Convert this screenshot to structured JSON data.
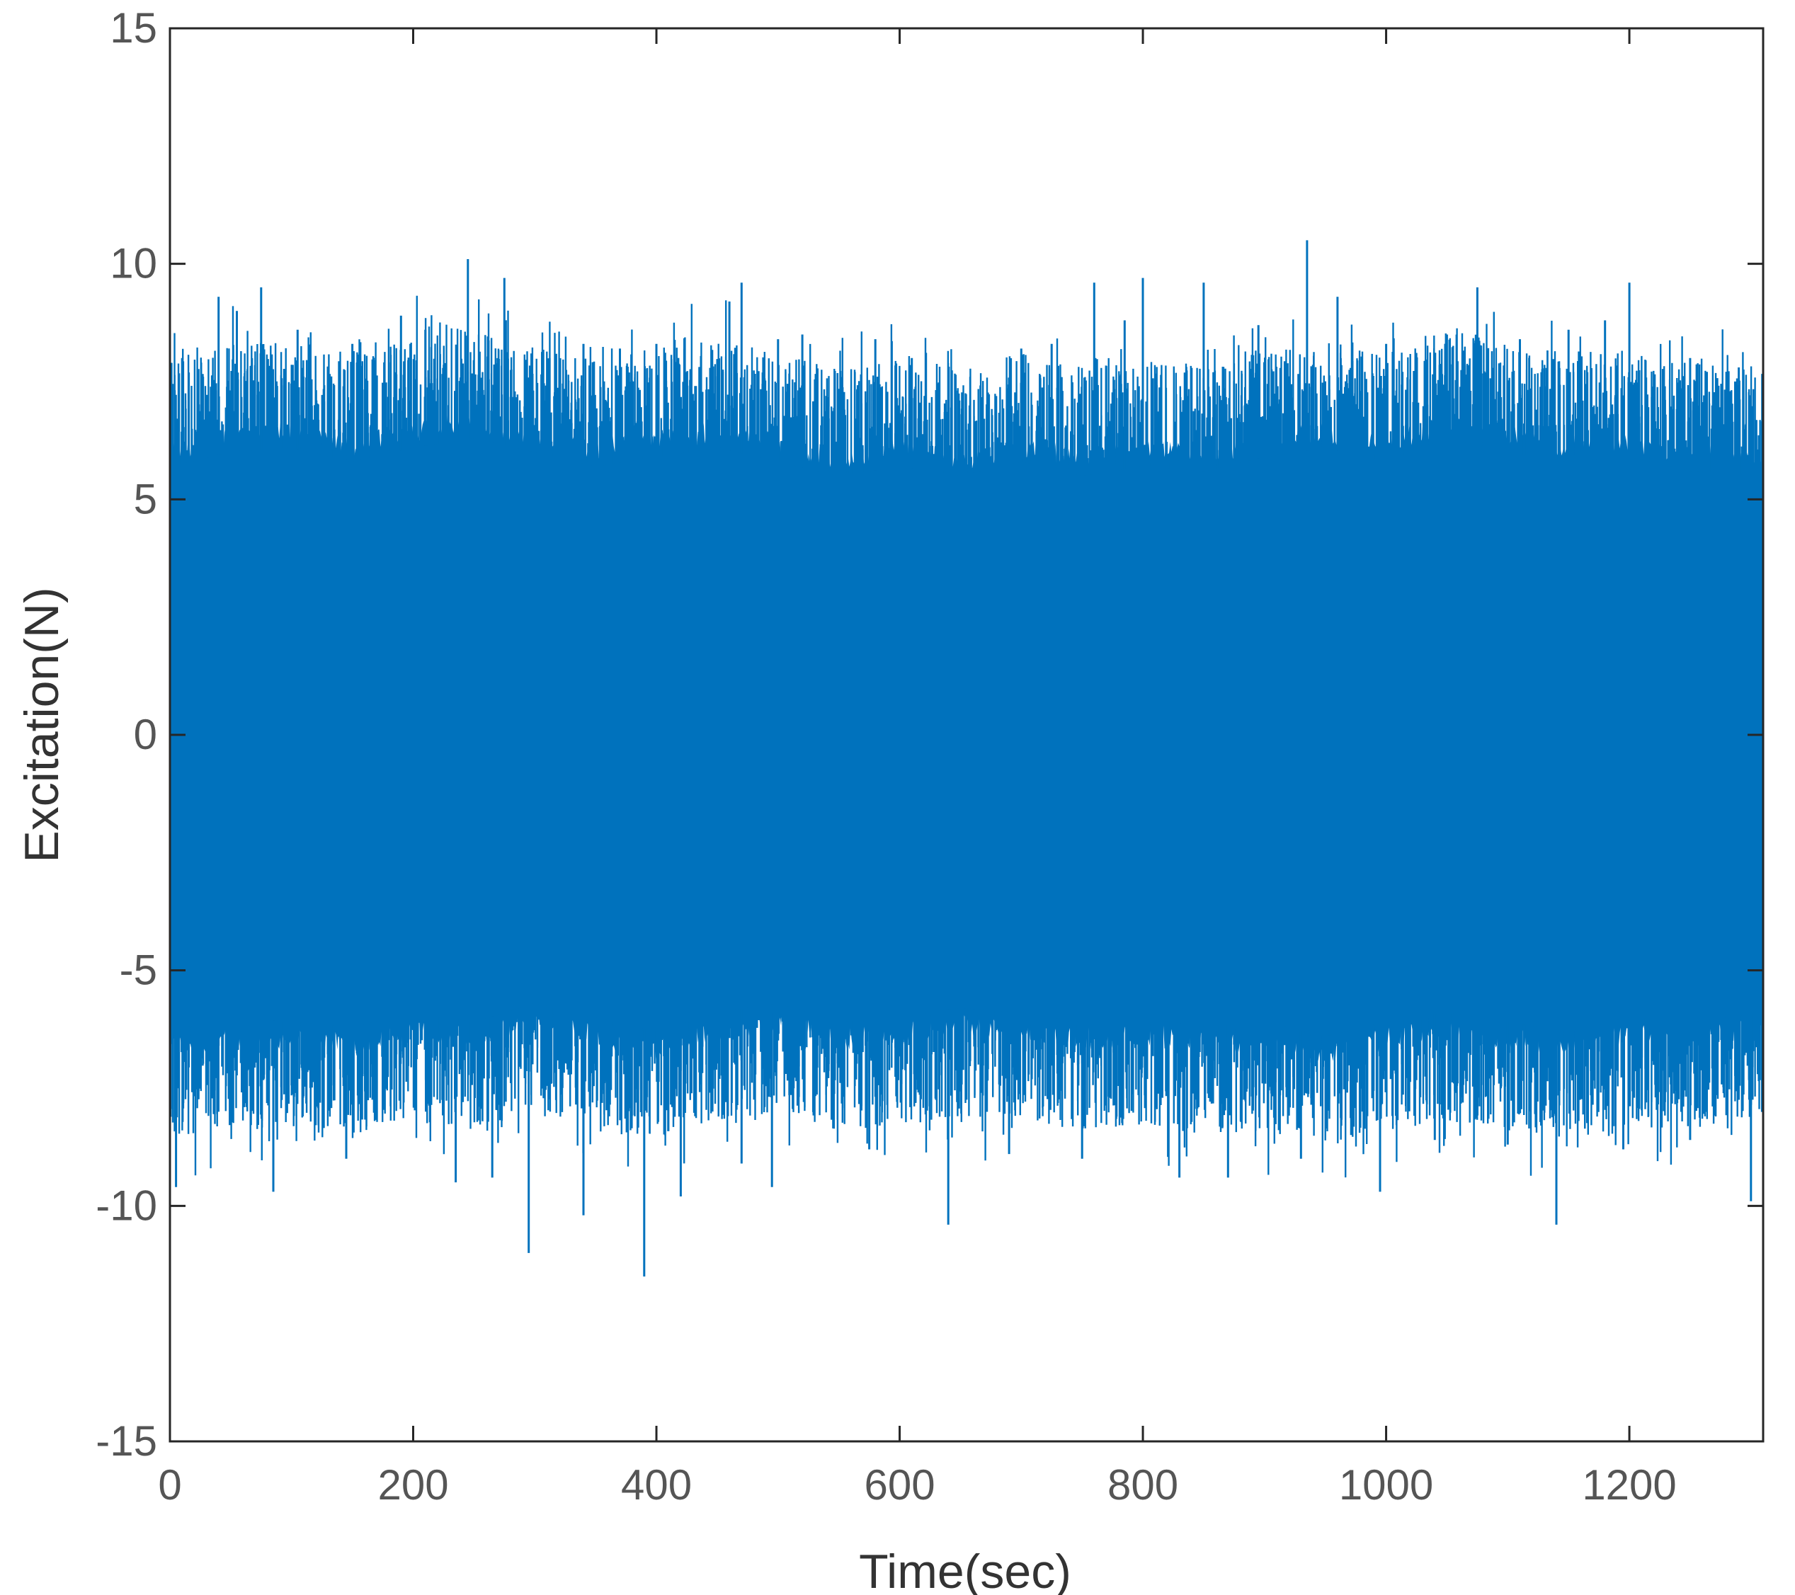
{
  "chart_data": {
    "type": "line",
    "title": "",
    "xlabel": "Time(sec)",
    "ylabel": "Excitation(N)",
    "xlim": [
      0,
      1310
    ],
    "ylim": [
      -15,
      15
    ],
    "xticks": [
      0,
      200,
      400,
      600,
      800,
      1000,
      1200
    ],
    "yticks": [
      -15,
      -10,
      -5,
      0,
      5,
      10,
      15
    ],
    "grid": false,
    "legend": "none",
    "series": [
      {
        "color": "#0072bd",
        "envelope_x": [
          0,
          50,
          100,
          150,
          200,
          250,
          300,
          350,
          400,
          450,
          500,
          550,
          600,
          650,
          700,
          750,
          800,
          850,
          900,
          950,
          1000,
          1050,
          1100,
          1150,
          1200,
          1250,
          1310
        ],
        "envelope_upper": [
          7.2,
          7.5,
          7.6,
          7.3,
          7.6,
          7.8,
          7.5,
          7.2,
          7.4,
          7.6,
          7.3,
          7.0,
          7.2,
          7.0,
          7.3,
          7.0,
          7.2,
          7.1,
          7.4,
          7.6,
          7.3,
          7.8,
          7.5,
          7.3,
          7.4,
          7.1,
          7.0
        ],
        "envelope_lower": [
          -7.8,
          -7.5,
          -7.6,
          -7.7,
          -7.4,
          -7.6,
          -7.2,
          -7.5,
          -7.8,
          -7.4,
          -7.2,
          -7.6,
          -7.5,
          -7.3,
          -7.4,
          -7.6,
          -7.5,
          -7.7,
          -7.6,
          -7.9,
          -7.6,
          -7.4,
          -7.6,
          -7.8,
          -7.5,
          -7.6,
          -7.4
        ],
        "peaks": [
          [
            10,
            8.0
          ],
          [
            40,
            9.3
          ],
          [
            55,
            9.0
          ],
          [
            75,
            9.5
          ],
          [
            105,
            8.6
          ],
          [
            150,
            8.3
          ],
          [
            190,
            8.9
          ],
          [
            210,
            8.6
          ],
          [
            245,
            10.1
          ],
          [
            275,
            9.7
          ],
          [
            340,
            8.3
          ],
          [
            370,
            8.2
          ],
          [
            400,
            8.3
          ],
          [
            460,
            9.2
          ],
          [
            470,
            9.6
          ],
          [
            500,
            8.4
          ],
          [
            520,
            8.5
          ],
          [
            580,
            8.4
          ],
          [
            610,
            8.0
          ],
          [
            700,
            8.2
          ],
          [
            725,
            8.3
          ],
          [
            760,
            9.6
          ],
          [
            785,
            8.8
          ],
          [
            800,
            9.7
          ],
          [
            850,
            9.6
          ],
          [
            895,
            8.7
          ],
          [
            935,
            10.5
          ],
          [
            960,
            9.3
          ],
          [
            1000,
            8.3
          ],
          [
            1050,
            8.5
          ],
          [
            1075,
            9.5
          ],
          [
            1110,
            8.4
          ],
          [
            1150,
            8.6
          ],
          [
            1180,
            8.8
          ],
          [
            1200,
            9.6
          ],
          [
            1250,
            8.0
          ],
          [
            1290,
            7.8
          ],
          [
            5,
            -9.6
          ],
          [
            85,
            -9.7
          ],
          [
            145,
            -9.0
          ],
          [
            235,
            -9.5
          ],
          [
            265,
            -9.4
          ],
          [
            295,
            -11.0
          ],
          [
            340,
            -10.2
          ],
          [
            390,
            -11.5
          ],
          [
            420,
            -9.8
          ],
          [
            470,
            -9.1
          ],
          [
            495,
            -9.6
          ],
          [
            575,
            -8.8
          ],
          [
            640,
            -10.4
          ],
          [
            690,
            -8.9
          ],
          [
            750,
            -9.0
          ],
          [
            830,
            -9.4
          ],
          [
            870,
            -9.4
          ],
          [
            930,
            -9.0
          ],
          [
            995,
            -9.7
          ],
          [
            1040,
            -8.6
          ],
          [
            1100,
            -8.7
          ],
          [
            1140,
            -10.4
          ],
          [
            1195,
            -8.8
          ],
          [
            1250,
            -8.6
          ],
          [
            1300,
            -9.9
          ]
        ]
      }
    ]
  }
}
